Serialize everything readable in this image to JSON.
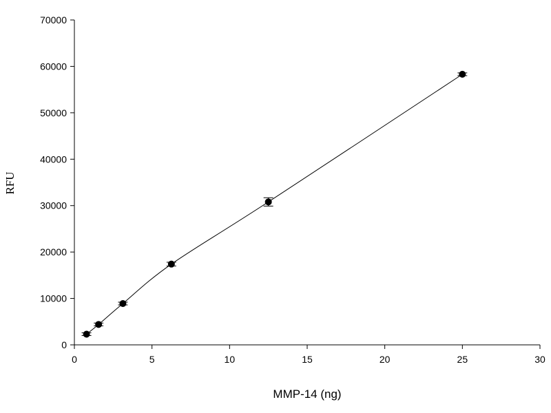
{
  "chart_data": {
    "type": "scatter",
    "title": "",
    "xlabel": "MMP-14 (ng)",
    "ylabel": "RFU",
    "xlim": [
      0,
      30
    ],
    "ylim": [
      0,
      70000
    ],
    "x_ticks": [
      0,
      5,
      10,
      15,
      20,
      25,
      30
    ],
    "y_ticks": [
      0,
      10000,
      20000,
      30000,
      40000,
      50000,
      60000,
      70000
    ],
    "x_tick_labels": [
      "0",
      "5",
      "10",
      "15",
      "20",
      "25",
      "30"
    ],
    "y_tick_labels": [
      "0",
      "10000",
      "20000",
      "30000",
      "40000",
      "50000",
      "60000",
      "70000"
    ],
    "grid": false,
    "legend": "none",
    "series": [
      {
        "x": [
          0.78,
          1.56,
          3.125,
          6.25,
          12.5,
          25
        ],
        "y": [
          2300,
          4400,
          8900,
          17400,
          30800,
          58300
        ],
        "error": [
          300,
          300,
          300,
          400,
          900,
          300
        ],
        "marker": "circle",
        "color": "#000000",
        "line": "smooth"
      }
    ]
  }
}
